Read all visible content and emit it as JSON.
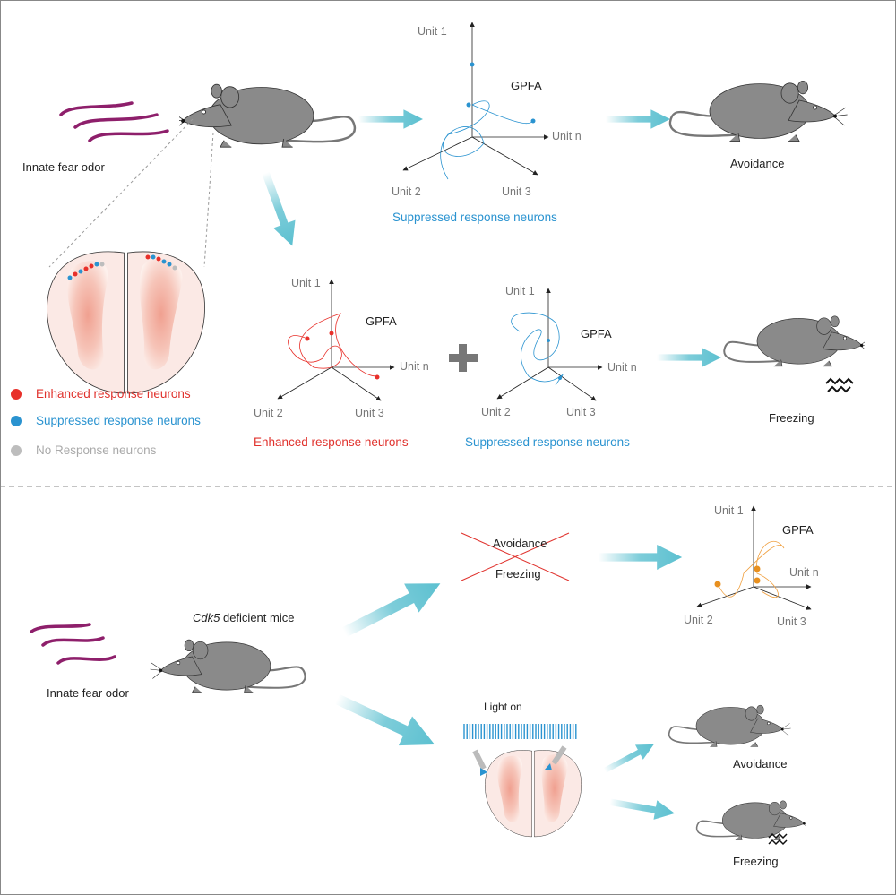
{
  "colors": {
    "enhanced": "#e8302a",
    "suppressed": "#2a93d0",
    "no_response": "#bdbdbd",
    "arrow": "#5cc0d0",
    "odor": "#8e1f6b",
    "trajectory_orange": "#f0a040",
    "mouse": "#8a8a8a"
  },
  "top": {
    "odor_label": "Innate fear odor",
    "plot_top": {
      "axes": [
        "Unit 1",
        "Unit 2",
        "Unit 3",
        "Unit n"
      ],
      "method": "GPFA",
      "caption": "Suppressed response neurons"
    },
    "outcome_top": "Avoidance",
    "plot_enhanced": {
      "axes": [
        "Unit 1",
        "Unit 2",
        "Unit 3",
        "Unit n"
      ],
      "method": "GPFA",
      "caption": "Enhanced response neurons"
    },
    "plus": "+",
    "plot_suppressed": {
      "axes": [
        "Unit 1",
        "Unit 2",
        "Unit 3",
        "Unit n"
      ],
      "method": "GPFA",
      "caption": "Suppressed response neurons"
    },
    "outcome_bottom": "Freezing",
    "legend": [
      {
        "label": "Enhanced response neurons",
        "color": "#e8302a"
      },
      {
        "label": "Suppressed response neurons",
        "color": "#2a93d0"
      },
      {
        "label": "No Response neurons",
        "color": "#bdbdbd"
      }
    ]
  },
  "bottom": {
    "odor_label": "Innate fear odor",
    "mice_gene": "Cdk5",
    "mice_label": " deficient mice",
    "crossed": [
      "Avoidance",
      "Freezing"
    ],
    "plot": {
      "axes": [
        "Unit 1",
        "Unit 2",
        "Unit 3",
        "Unit n"
      ],
      "method": "GPFA"
    },
    "light_label": "Light on",
    "outcome_1": "Avoidance",
    "outcome_2": "Freezing"
  }
}
